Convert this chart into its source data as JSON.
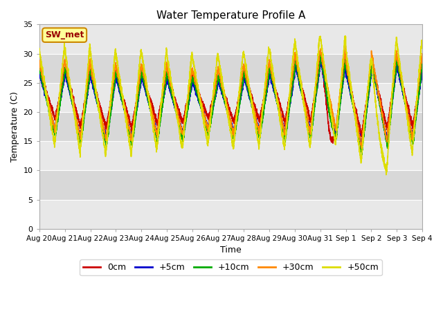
{
  "title": "Water Temperature Profile A",
  "xlabel": "Time",
  "ylabel": "Temperature (C)",
  "ylim": [
    0,
    35
  ],
  "yticks": [
    0,
    5,
    10,
    15,
    20,
    25,
    30,
    35
  ],
  "annotation_text": "SW_met",
  "annotation_bg": "#ffff99",
  "annotation_border": "#cc8800",
  "annotation_text_color": "#990000",
  "plot_bg_light": "#e8e8e8",
  "plot_bg_dark": "#d8d8d8",
  "tick_labels": [
    "Aug 20",
    "Aug 21",
    "Aug 22",
    "Aug 23",
    "Aug 24",
    "Aug 25",
    "Aug 26",
    "Aug 27",
    "Aug 28",
    "Aug 29",
    "Aug 30",
    "Aug 31",
    "Sep 1",
    "Sep 2",
    "Sep 3",
    "Sep 4"
  ],
  "colors": {
    "0cm": "#cc0000",
    "+5cm": "#0000cc",
    "+10cm": "#00aa00",
    "+30cm": "#ff8800",
    "+50cm": "#dddd00"
  },
  "n_days": 15,
  "pts_per_day": 288
}
